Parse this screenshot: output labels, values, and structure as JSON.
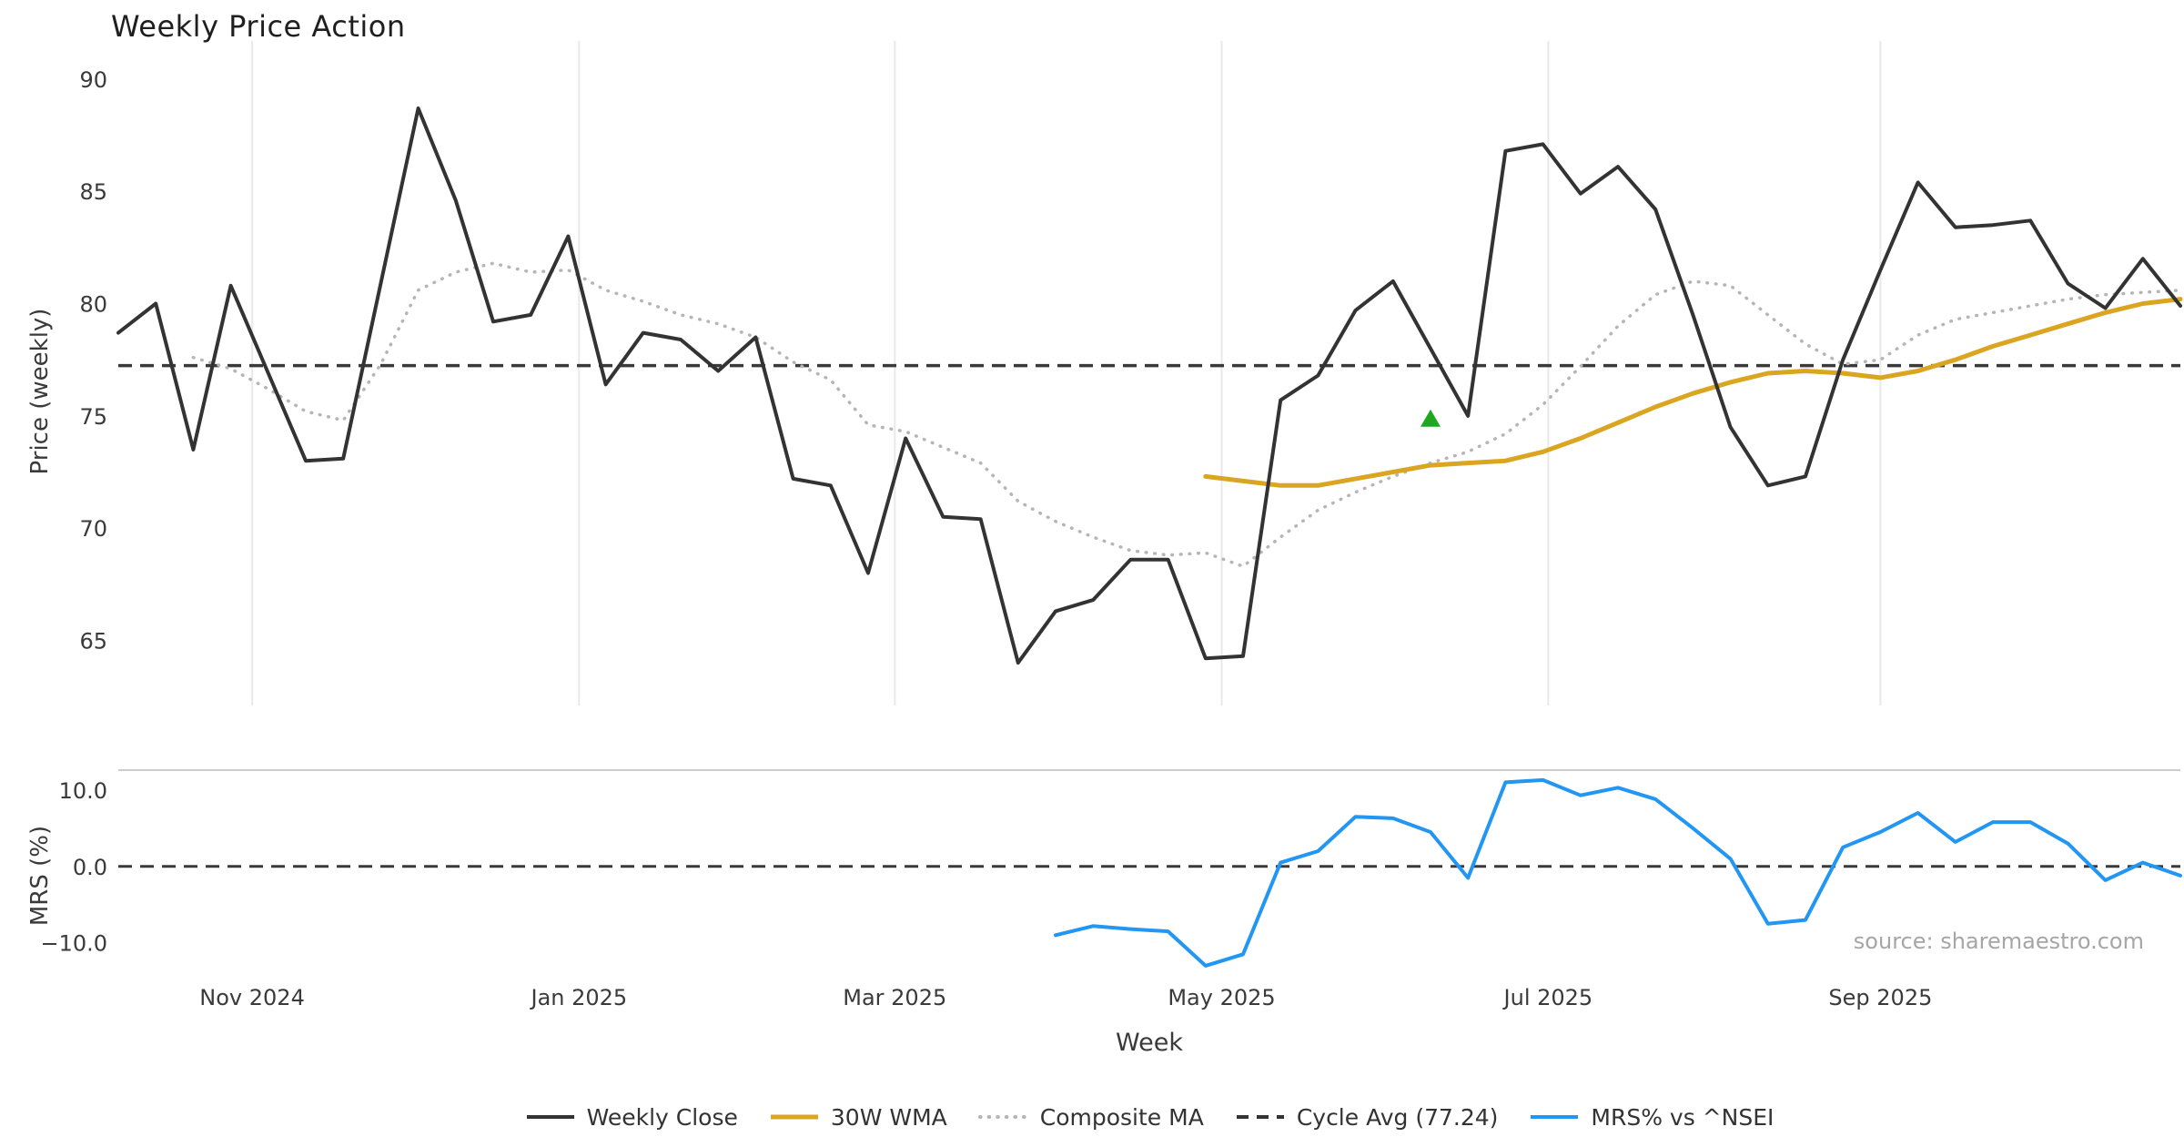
{
  "chart_data": {
    "type": "line",
    "title": "Weekly Price Action",
    "xlabel": "Week",
    "source_text": "source: sharemaestro.com",
    "weeks_total": 56,
    "x_tick_labels": [
      "Nov 2024",
      "Jan 2025",
      "Mar 2025",
      "May 2025",
      "Jul 2025",
      "Sep 2025"
    ],
    "x_tick_weeks": [
      3.57,
      12.29,
      20.71,
      29.43,
      38.14,
      47.0
    ],
    "grid": "vertical-gridlines-top-panel-only",
    "legend_position": "bottom-center",
    "colors": {
      "grid": "#e9e9e9",
      "spine": "#cccccc",
      "cycle_avg": "#3a3a3a",
      "weekly_close": "#333333",
      "wma": "#DAA520",
      "composite": "#b5b5b5",
      "mrs": "#2196f3",
      "signal": "#1fa81f",
      "tick_text": "#3a3a3a"
    },
    "panels": [
      {
        "name": "price",
        "ylabel": "Price (weekly)",
        "ylim": [
          62.1,
          91.7
        ],
        "yticks": [
          65,
          70,
          75,
          80,
          85,
          90
        ],
        "cycle_avg": 77.24,
        "series": [
          {
            "name": "Weekly Close",
            "color": "#333333",
            "style": "solid",
            "width": 4,
            "start_week": 0,
            "values": [
              78.7,
              80.0,
              73.5,
              80.8,
              76.9,
              73.0,
              73.1,
              80.9,
              88.7,
              84.6,
              79.2,
              79.5,
              83.0,
              76.4,
              78.7,
              78.4,
              77.0,
              78.5,
              72.2,
              71.9,
              68.0,
              74.0,
              70.5,
              70.4,
              64.0,
              66.3,
              66.8,
              68.6,
              68.6,
              64.2,
              64.3,
              75.7,
              76.8,
              79.7,
              81.0,
              78.0,
              75.0,
              86.8,
              87.1,
              84.9,
              86.1,
              84.2,
              79.5,
              74.5,
              71.9,
              72.3,
              77.5,
              81.5,
              85.4,
              83.4,
              83.5,
              83.7,
              80.9,
              79.8,
              82.0,
              79.9
            ]
          },
          {
            "name": "30W WMA",
            "color": "#DAA520",
            "style": "solid",
            "width": 5,
            "start_week": 29,
            "values": [
              72.3,
              72.1,
              71.9,
              71.9,
              72.2,
              72.5,
              72.8,
              72.9,
              73.0,
              73.4,
              74.0,
              74.7,
              75.4,
              76.0,
              76.5,
              76.9,
              77.0,
              76.9,
              76.7,
              77.0,
              77.5,
              78.1,
              78.6,
              79.1,
              79.6,
              80.0,
              80.2
            ]
          },
          {
            "name": "Composite MA",
            "color": "#b5b5b5",
            "style": "dotted",
            "width": 3.5,
            "start_week": 2,
            "values": [
              77.6,
              77.1,
              76.2,
              75.2,
              74.8,
              77.3,
              80.6,
              81.4,
              81.8,
              81.4,
              81.5,
              80.6,
              80.1,
              79.5,
              79.1,
              78.5,
              77.4,
              76.6,
              74.6,
              74.3,
              73.6,
              72.9,
              71.2,
              70.3,
              69.6,
              69.0,
              68.8,
              68.9,
              68.3,
              69.6,
              70.8,
              71.6,
              72.3,
              72.9,
              73.4,
              74.2,
              75.5,
              77.2,
              79.0,
              80.4,
              81.0,
              80.8,
              79.5,
              78.2,
              77.3,
              77.5,
              78.6,
              79.3,
              79.6,
              79.9,
              80.2,
              80.4,
              80.5,
              80.6
            ]
          }
        ],
        "marker": {
          "shape": "triangle-up",
          "color": "#1fa81f",
          "week": 35,
          "value": 74.8
        }
      },
      {
        "name": "mrs",
        "ylabel": "MRS (%)",
        "ylim": [
          -14.2,
          12.6
        ],
        "yticks": [
          10,
          0,
          -10
        ],
        "ytick_labels": [
          "10.0",
          "0.0",
          "−10.0"
        ],
        "zero_line": 0,
        "series": [
          {
            "name": "MRS% vs ^NSEI",
            "color": "#2196f3",
            "style": "solid",
            "width": 4,
            "start_week": 25,
            "values": [
              -9.0,
              -7.8,
              -8.2,
              -8.5,
              -13.0,
              -11.5,
              0.5,
              2.0,
              6.5,
              6.3,
              4.5,
              -1.5,
              11.0,
              11.3,
              9.3,
              10.3,
              8.8,
              5.0,
              1.0,
              -7.5,
              -7.0,
              2.5,
              4.5,
              7.0,
              3.2,
              5.8,
              5.8,
              3.0,
              -1.8,
              0.5,
              -1.2
            ]
          }
        ]
      }
    ],
    "legend": [
      {
        "label": "Weekly Close",
        "color": "#333333",
        "style": "solid"
      },
      {
        "label": "30W WMA",
        "color": "#DAA520",
        "style": "solid"
      },
      {
        "label": "Composite MA",
        "color": "#b5b5b5",
        "style": "dotted"
      },
      {
        "label": "Cycle Avg (77.24)",
        "color": "#333333",
        "style": "dashed"
      },
      {
        "label": "MRS% vs ^NSEI",
        "color": "#2196f3",
        "style": "solid"
      }
    ]
  }
}
